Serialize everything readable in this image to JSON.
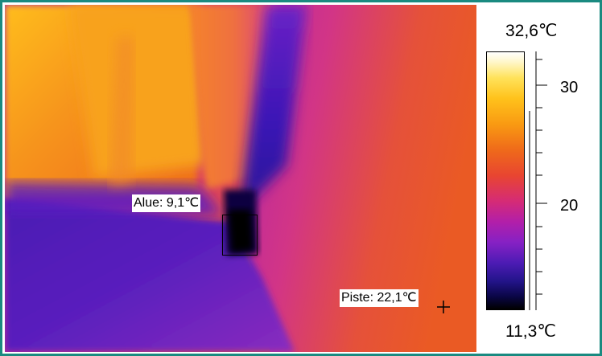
{
  "image": {
    "area_measurement": {
      "label": "Alue: 9,1℃"
    },
    "spot_measurement": {
      "label": "Piste: 22,1℃"
    }
  },
  "scale": {
    "max_label": "32,6℃",
    "min_label": "11,3℃",
    "tick_labels": [
      "30",
      "20"
    ],
    "palette": "iron",
    "colors": [
      "#ffffff",
      "#ffe25a",
      "#f99a12",
      "#e84531",
      "#b21fa9",
      "#4c1bb4",
      "#000000"
    ]
  },
  "frame": {
    "border_color": "#1a8a80"
  }
}
